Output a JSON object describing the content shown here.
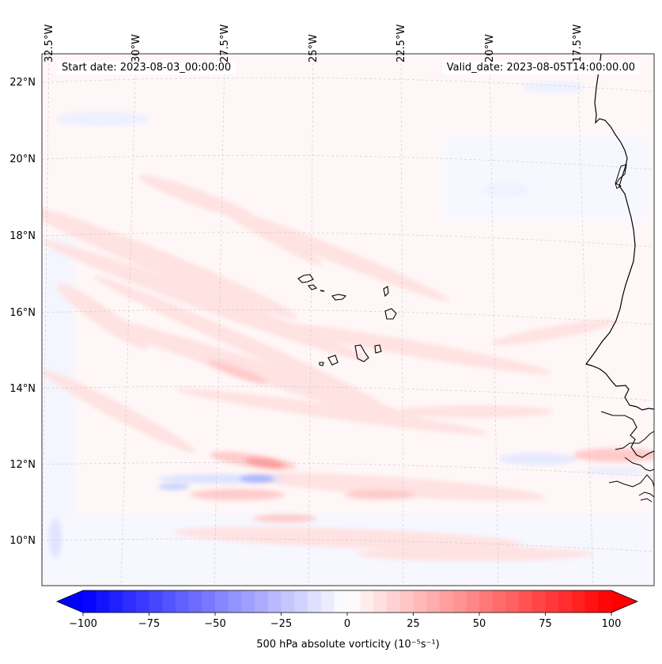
{
  "header": {
    "start_date": "Start date: 2023-08-03_00:00:00",
    "valid_date": "Valid_date: 2023-08-05T14:00:00.00"
  },
  "longitude_labels": [
    "32.5°W",
    "30°W",
    "27.5°W",
    "25°W",
    "22.5°W",
    "20°W",
    "17.5°W"
  ],
  "latitude_labels": [
    "22°N",
    "20°N",
    "18°N",
    "16°N",
    "14°N",
    "12°N",
    "10°N"
  ],
  "colorbar": {
    "ticks": [
      "−100",
      "−75",
      "−50",
      "−25",
      "0",
      "25",
      "50",
      "75",
      "100"
    ],
    "min": -100,
    "max": 100,
    "label": "500 hPa absolute vorticity (10⁻⁵s⁻¹)",
    "cmap": "bwr"
  },
  "colors": {
    "negative": "#0000ff",
    "neutral": "#ffffff",
    "positive": "#ff0000",
    "coastline": "#000000"
  }
}
